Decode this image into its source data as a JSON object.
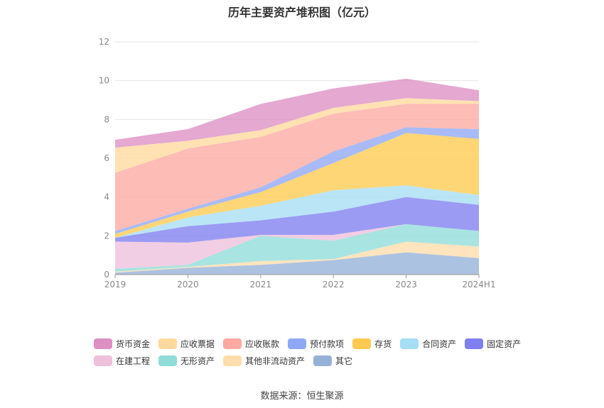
{
  "chart_data": {
    "type": "area",
    "stacked": true,
    "title": "历年主要资产堆积图（亿元）",
    "categories": [
      "2019",
      "2020",
      "2021",
      "2022",
      "2023",
      "2024H1"
    ],
    "ylim": [
      0,
      12
    ],
    "yticks": [
      0,
      2,
      4,
      6,
      8,
      10,
      12
    ],
    "grid": true,
    "legend_position": "bottom",
    "series": [
      {
        "name": "其它",
        "color": "#95b1d8",
        "values": [
          0.1,
          0.35,
          0.5,
          0.75,
          1.15,
          0.85
        ]
      },
      {
        "name": "其他非流动资产",
        "color": "#ffdcab",
        "values": [
          0.05,
          0.05,
          0.2,
          0.05,
          0.55,
          0.6
        ]
      },
      {
        "name": "无形资产",
        "color": "#8fdcd9",
        "values": [
          0.15,
          0.1,
          1.3,
          0.95,
          0.9,
          0.8
        ]
      },
      {
        "name": "在建工程",
        "color": "#eec0dc",
        "values": [
          1.4,
          1.15,
          0.05,
          0.3,
          0.0,
          0.0
        ]
      },
      {
        "name": "固定资产",
        "color": "#7f7ff0",
        "values": [
          0.2,
          0.85,
          0.75,
          1.2,
          1.4,
          1.35
        ]
      },
      {
        "name": "合同资产",
        "color": "#a6def5",
        "values": [
          0.0,
          0.45,
          0.75,
          1.1,
          0.6,
          0.5
        ]
      },
      {
        "name": "存货",
        "color": "#ffca4f",
        "values": [
          0.2,
          0.3,
          0.7,
          1.4,
          2.7,
          2.9
        ]
      },
      {
        "name": "预付款项",
        "color": "#8fa8f5",
        "values": [
          0.15,
          0.15,
          0.25,
          0.6,
          0.3,
          0.5
        ]
      },
      {
        "name": "应收账款",
        "color": "#fda9a1",
        "values": [
          3.0,
          3.1,
          2.6,
          1.95,
          1.2,
          1.3
        ]
      },
      {
        "name": "应收票据",
        "color": "#ffd89c",
        "values": [
          1.3,
          0.4,
          0.35,
          0.3,
          0.3,
          0.15
        ]
      },
      {
        "name": "货币资金",
        "color": "#dd8fc4",
        "values": [
          0.4,
          0.6,
          1.35,
          1.0,
          1.0,
          0.55
        ]
      }
    ]
  },
  "legend": {
    "rows": [
      [
        {
          "name": "货币资金",
          "color": "#dd8fc4"
        },
        {
          "name": "应收票据",
          "color": "#ffd89c"
        },
        {
          "name": "应收账款",
          "color": "#fda9a1"
        },
        {
          "name": "预付款项",
          "color": "#8fa8f5"
        },
        {
          "name": "存货",
          "color": "#ffca4f"
        },
        {
          "name": "合同资产",
          "color": "#a6def5"
        },
        {
          "name": "固定资产",
          "color": "#7f7ff0"
        }
      ],
      [
        {
          "name": "在建工程",
          "color": "#eec0dc"
        },
        {
          "name": "无形资产",
          "color": "#8fdcd9"
        },
        {
          "name": "其他非流动资产",
          "color": "#ffdcab"
        },
        {
          "name": "其它",
          "color": "#95b1d8"
        }
      ]
    ]
  },
  "source": "数据来源：恒生聚源"
}
